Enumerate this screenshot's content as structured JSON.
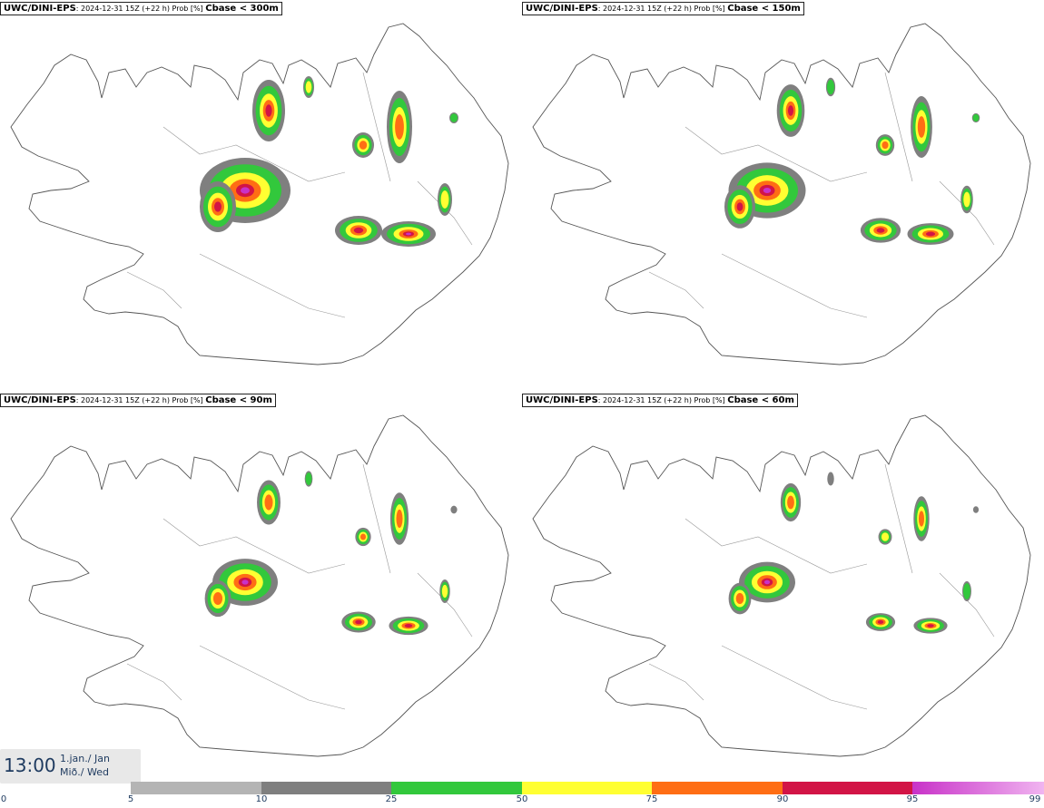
{
  "panels": [
    {
      "source": "UWC/DINI-EPS",
      "meta": ": 2024-12-31 15Z (+22 h) Prob [%] ",
      "param": "Cbase < 300m"
    },
    {
      "source": "UWC/DINI-EPS",
      "meta": ": 2024-12-31 15Z (+22 h) Prob [%] ",
      "param": "Cbase < 150m"
    },
    {
      "source": "UWC/DINI-EPS",
      "meta": ": 2024-12-31 15Z (+22 h) Prob [%] ",
      "param": "Cbase < 90m"
    },
    {
      "source": "UWC/DINI-EPS",
      "meta": ": 2024-12-31 15Z (+22 h) Prob [%] ",
      "param": "Cbase < 60m"
    }
  ],
  "time": {
    "clock": "13:00",
    "date_line1": "1.jan./ Jan",
    "date_line2": "Mið./ Wed"
  },
  "legend": {
    "ticks": [
      "0",
      "5",
      "10",
      "25",
      "50",
      "75",
      "90",
      "95",
      "99"
    ],
    "colors": [
      "#b4b4b4",
      "#7f7f7f",
      "#32c83c",
      "#ffff32",
      "#ff6e14",
      "#d21446",
      "#c832c8",
      "#f0b4f0"
    ]
  },
  "colors": {
    "coast": "#555555",
    "prob_5_10": "#b4b4b4",
    "prob_10_25": "#7f7f7f",
    "prob_25_50": "#32c83c",
    "prob_50_75": "#ffff32",
    "prob_75_90": "#ff6e14",
    "prob_90_95": "#d21446",
    "prob_95_99": "#c832c8"
  }
}
